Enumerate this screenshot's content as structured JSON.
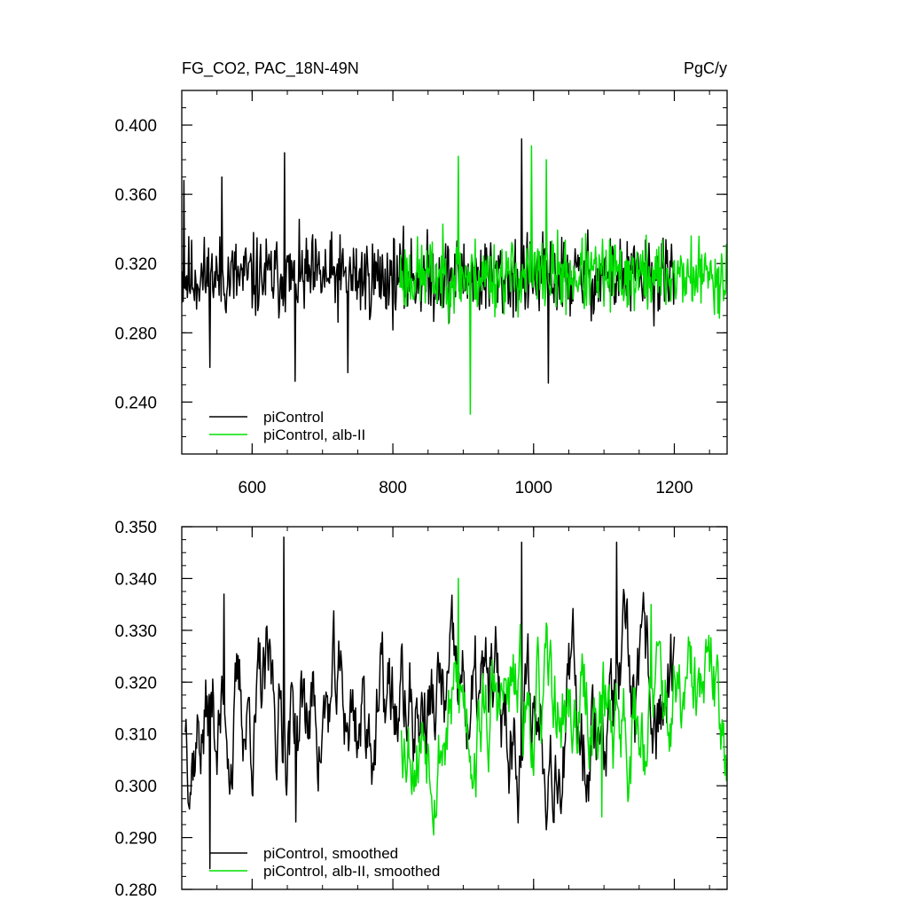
{
  "chart_data": [
    {
      "type": "line",
      "title_left": "FG_CO2, PAC_18N-49N",
      "title_right": "PgC/y",
      "xlim": [
        500,
        1275
      ],
      "ylim": [
        0.21,
        0.42
      ],
      "xticks": [
        600,
        800,
        1000,
        1200
      ],
      "xtick_labels": [
        "600",
        "800",
        "1000",
        "1200"
      ],
      "yticks": [
        0.24,
        0.28,
        0.32,
        0.36,
        0.4
      ],
      "ytick_labels": [
        "0.240",
        "0.280",
        "0.320",
        "0.360",
        "0.400"
      ],
      "legend_position": "bottom-left",
      "series": [
        {
          "name": "piControl",
          "color": "#000000",
          "x_start": 500,
          "x_end": 1200,
          "mean": 0.312,
          "amplitude": 0.022,
          "seed": 11,
          "keypoints": [
            [
              503,
              0.368
            ],
            [
              540,
              0.26
            ],
            [
              557,
              0.37
            ],
            [
              646,
              0.384
            ],
            [
              661,
              0.252
            ],
            [
              736,
              0.257
            ],
            [
              983,
              0.392
            ],
            [
              1021,
              0.251
            ]
          ]
        },
        {
          "name": "piControl, alb-II",
          "color": "#00e000",
          "x_start": 810,
          "x_end": 1275,
          "mean": 0.313,
          "amplitude": 0.02,
          "seed": 23,
          "keypoints": [
            [
              893,
              0.382
            ],
            [
              910,
              0.233
            ],
            [
              997,
              0.388
            ],
            [
              1018,
              0.38
            ]
          ]
        }
      ]
    },
    {
      "type": "line",
      "xlim": [
        500,
        1275
      ],
      "ylim": [
        0.28,
        0.35
      ],
      "xticks": [
        600,
        800,
        1000,
        1200
      ],
      "yticks": [
        0.28,
        0.29,
        0.3,
        0.31,
        0.32,
        0.33,
        0.34,
        0.35
      ],
      "ytick_labels": [
        "0.280",
        "0.290",
        "0.300",
        "0.310",
        "0.320",
        "0.330",
        "0.340",
        "0.350"
      ],
      "legend_position": "bottom-left",
      "series": [
        {
          "name": "piControl, smoothed",
          "color": "#000000",
          "x_start": 505,
          "x_end": 1200,
          "mean": 0.314,
          "amplitude": 0.011,
          "seed": 37,
          "keypoints": [
            [
              540,
              0.284
            ],
            [
              560,
              0.337
            ],
            [
              645,
              0.348
            ],
            [
              662,
              0.293
            ],
            [
              983,
              0.347
            ],
            [
              1118,
              0.347
            ]
          ]
        },
        {
          "name": "piControl, alb-II, smoothed",
          "color": "#00e000",
          "x_start": 812,
          "x_end": 1275,
          "mean": 0.314,
          "amplitude": 0.01,
          "seed": 53,
          "keypoints": [
            [
              893,
              0.34
            ],
            [
              1097,
              0.294
            ],
            [
              1167,
              0.335
            ]
          ]
        }
      ]
    }
  ]
}
